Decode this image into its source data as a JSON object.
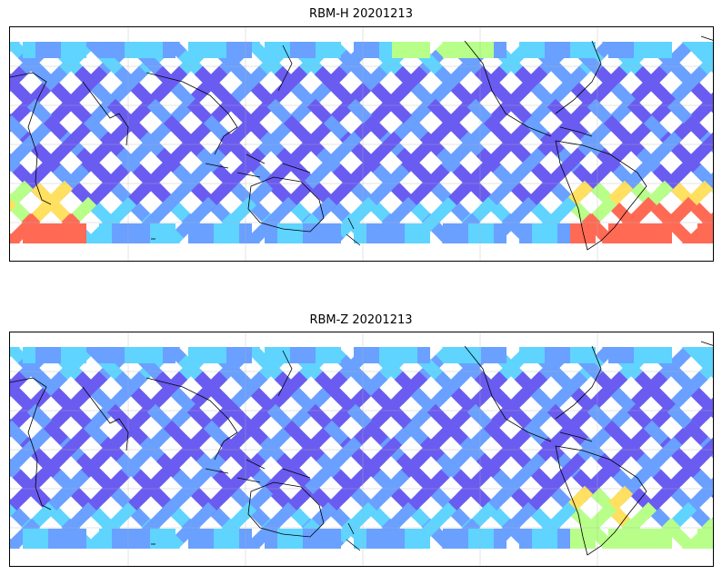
{
  "panels": [
    {
      "title": "RBM-H 20201213",
      "variant": "H"
    },
    {
      "title": "RBM-Z 20201213",
      "variant": "Z"
    }
  ],
  "colors": {
    "low": "#6a5cf0",
    "mid_low": "#6aa0ff",
    "mid": "#5fd4ff",
    "mid_high": "#b8ff8a",
    "high_yellow": "#ffe060",
    "high": "#ff6a55",
    "coastline": "#000000",
    "grid": "#b0b0b0"
  }
}
